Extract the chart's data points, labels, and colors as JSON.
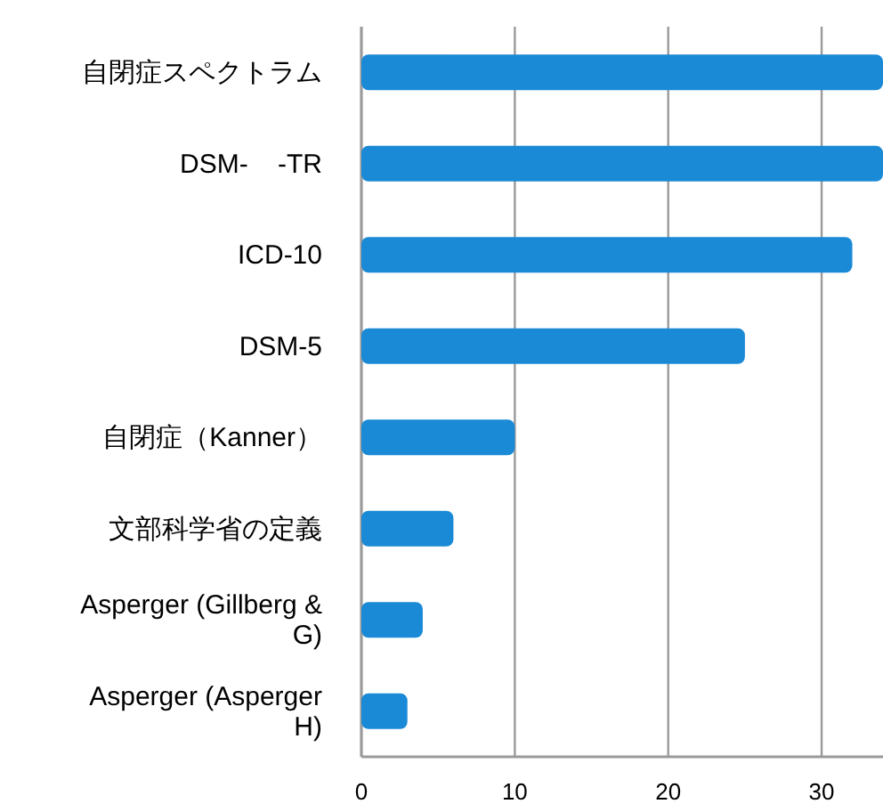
{
  "chart_data": {
    "type": "bar",
    "orientation": "horizontal",
    "categories": [
      "自閉症スペクトラム",
      "DSM-    -TR",
      "ICD-10",
      "DSM-5",
      "自閉症（Kanner）",
      "文部科学省の定義",
      "Asperger (Gillberg & G)",
      "Asperger (Asperger H)"
    ],
    "values": [
      34,
      34,
      32,
      25,
      10,
      6,
      4,
      3
    ],
    "color": "#1a8ad6",
    "xlim": [
      0,
      34
    ],
    "xticks": [
      0,
      10,
      20,
      30
    ],
    "grid": "x"
  }
}
